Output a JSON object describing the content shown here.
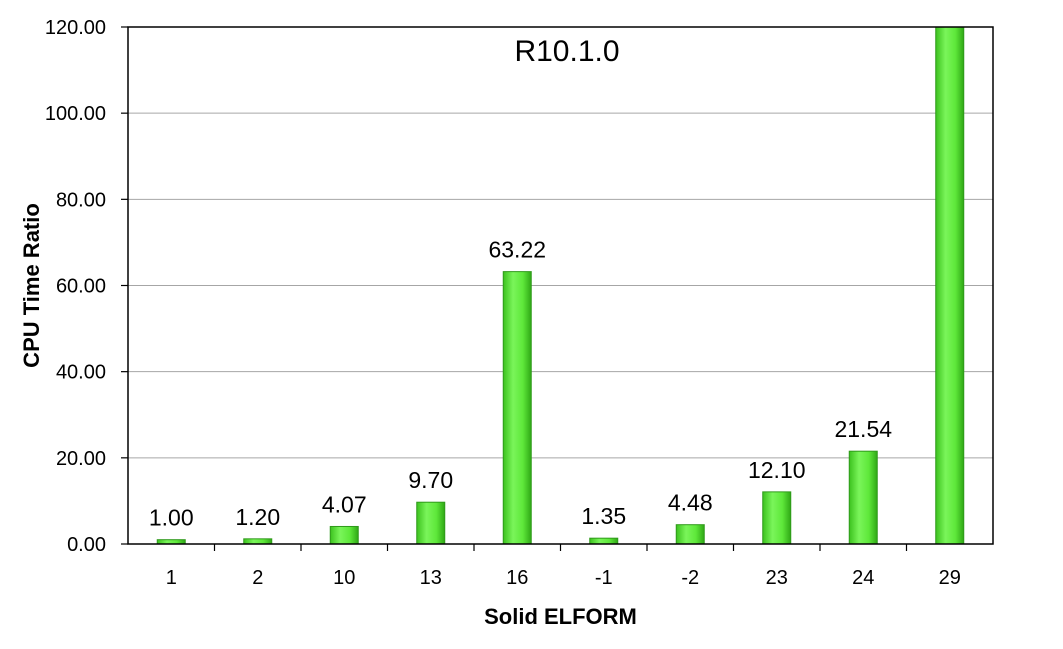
{
  "chart_data": {
    "type": "bar",
    "title": "R10.1.0",
    "xlabel": "Solid ELFORM",
    "ylabel": "CPU Time Ratio",
    "categories": [
      "1",
      "2",
      "10",
      "13",
      "16",
      "-1",
      "-2",
      "23",
      "24",
      "29"
    ],
    "values": [
      1.0,
      1.2,
      4.07,
      9.7,
      63.22,
      1.35,
      4.48,
      12.1,
      21.54,
      120.0
    ],
    "data_labels": [
      "1.00",
      "1.20",
      "4.07",
      "9.70",
      "63.22",
      "1.35",
      "4.48",
      "12.10",
      "21.54",
      ""
    ],
    "ylim": [
      0,
      120
    ],
    "yticks": [
      "0.00",
      "20.00",
      "40.00",
      "60.00",
      "80.00",
      "100.00",
      "120.00"
    ],
    "ytick_values": [
      0,
      20,
      40,
      60,
      80,
      100,
      120
    ],
    "grid": true,
    "legend": "none",
    "bar_color": "#5ee83a",
    "bar_edge_color": "#2f9a1a"
  }
}
